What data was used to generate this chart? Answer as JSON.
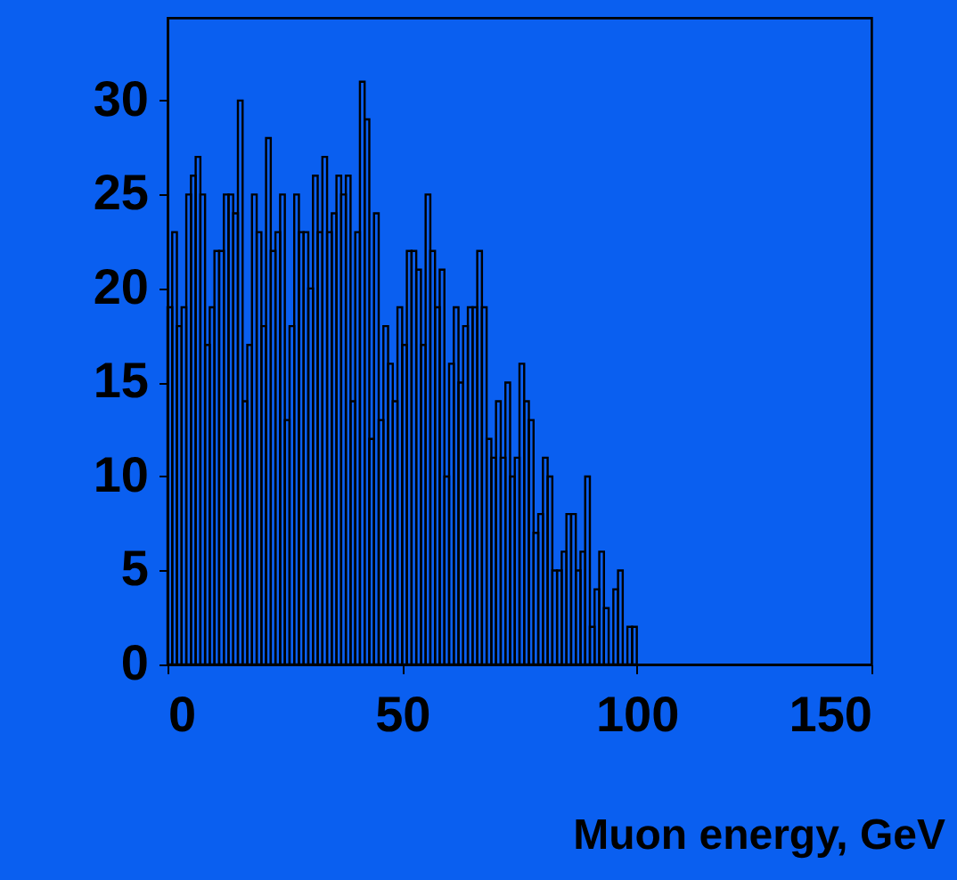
{
  "chart_data": {
    "type": "histogram",
    "xlabel": "Muon energy, GeV",
    "bins": [
      0,
      1,
      2,
      3,
      4,
      5,
      6,
      7,
      8,
      9,
      10,
      11,
      12,
      13,
      14,
      15,
      16,
      17,
      18,
      19,
      20,
      21,
      22,
      23,
      24,
      25,
      26,
      27,
      28,
      29,
      30,
      31,
      32,
      33,
      34,
      35,
      36,
      37,
      38,
      39,
      40,
      41,
      42,
      43,
      44,
      45,
      46,
      47,
      48,
      49,
      50,
      51,
      52,
      53,
      54,
      55,
      56,
      57,
      58,
      59,
      60,
      61,
      62,
      63,
      64,
      65,
      66,
      67,
      68,
      69,
      70,
      71,
      72,
      73,
      74,
      75,
      76,
      77,
      78,
      79,
      80,
      81,
      82,
      83,
      84,
      85,
      86,
      87,
      88,
      89,
      90,
      91,
      92,
      93,
      94,
      95,
      96,
      97,
      98,
      99,
      100
    ],
    "values": [
      19,
      23,
      18,
      19,
      25,
      26,
      27,
      25,
      17,
      19,
      22,
      22,
      25,
      25,
      24,
      30,
      14,
      17,
      25,
      23,
      18,
      28,
      22,
      23,
      25,
      13,
      18,
      25,
      23,
      23,
      20,
      26,
      23,
      27,
      23,
      24,
      26,
      25,
      26,
      14,
      23,
      31,
      29,
      12,
      24,
      13,
      18,
      16,
      14,
      19,
      17,
      22,
      22,
      21,
      17,
      25,
      22,
      19,
      21,
      10,
      16,
      19,
      15,
      18,
      19,
      19,
      22,
      19,
      12,
      11,
      14,
      11,
      15,
      10,
      11,
      16,
      14,
      13,
      7,
      8,
      11,
      10,
      5,
      5,
      6,
      8,
      8,
      5,
      6,
      10,
      2,
      4,
      6,
      3,
      0,
      4,
      5,
      0,
      2,
      2
    ],
    "color": "#000000",
    "xlim": [
      0,
      150
    ],
    "xticks": [
      0,
      50,
      100,
      150
    ],
    "ylim": [
      0,
      34.4
    ],
    "yticks": [
      0,
      5,
      10,
      15,
      20,
      25,
      30
    ],
    "grid": false
  }
}
